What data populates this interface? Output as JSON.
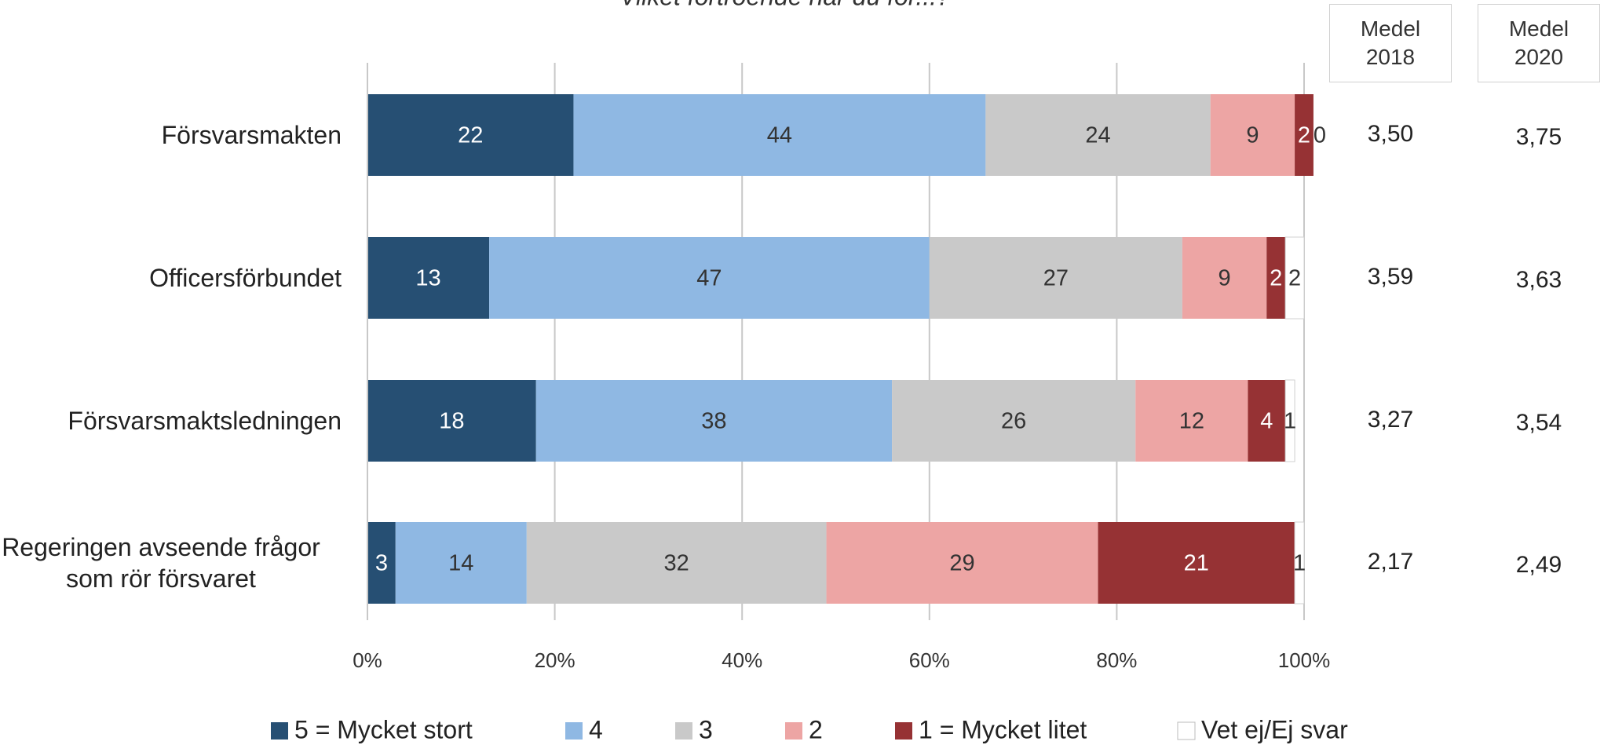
{
  "chart_data": {
    "type": "stacked-bar-horizontal",
    "title": "Vilket förtroende har du för...?",
    "categories": [
      "Försvarsmakten",
      "Officersförbundet",
      "Försvarsmaktsledningen",
      "Regeringen avseende frågor som rör försvaret"
    ],
    "series": [
      {
        "name": "5 = Mycket stort",
        "color": "#264f73",
        "label_color": "#ffffff",
        "values": [
          22,
          13,
          18,
          3
        ]
      },
      {
        "name": "4",
        "color": "#8fb8e3",
        "label_color": "#333333",
        "values": [
          44,
          47,
          38,
          14
        ]
      },
      {
        "name": "3",
        "color": "#c9c9c9",
        "label_color": "#333333",
        "values": [
          24,
          27,
          26,
          32
        ]
      },
      {
        "name": "2",
        "color": "#eda5a4",
        "label_color": "#333333",
        "values": [
          9,
          9,
          12,
          29
        ]
      },
      {
        "name": "1 = Mycket litet",
        "color": "#963234",
        "label_color": "#ffffff",
        "values": [
          2,
          2,
          4,
          21
        ]
      },
      {
        "name": "Vet ej/Ej svar",
        "color": "#ffffff",
        "label_color": "#333333",
        "values": [
          0,
          2,
          1,
          1
        ]
      }
    ],
    "xlim": [
      0,
      100
    ],
    "xticks": [
      {
        "value": 0,
        "label": "0%"
      },
      {
        "value": 20,
        "label": "20%"
      },
      {
        "value": 40,
        "label": "40%"
      },
      {
        "value": 60,
        "label": "60%"
      },
      {
        "value": 80,
        "label": "80%"
      },
      {
        "value": 100,
        "label": "100%"
      }
    ],
    "grid": true,
    "mean_columns": [
      {
        "header": "Medel 2018",
        "values": [
          "3,50",
          "3,59",
          "3,27",
          "2,17"
        ]
      },
      {
        "header": "Medel 2020",
        "values": [
          "3,75",
          "3,63",
          "3,54",
          "2,49"
        ]
      }
    ]
  }
}
